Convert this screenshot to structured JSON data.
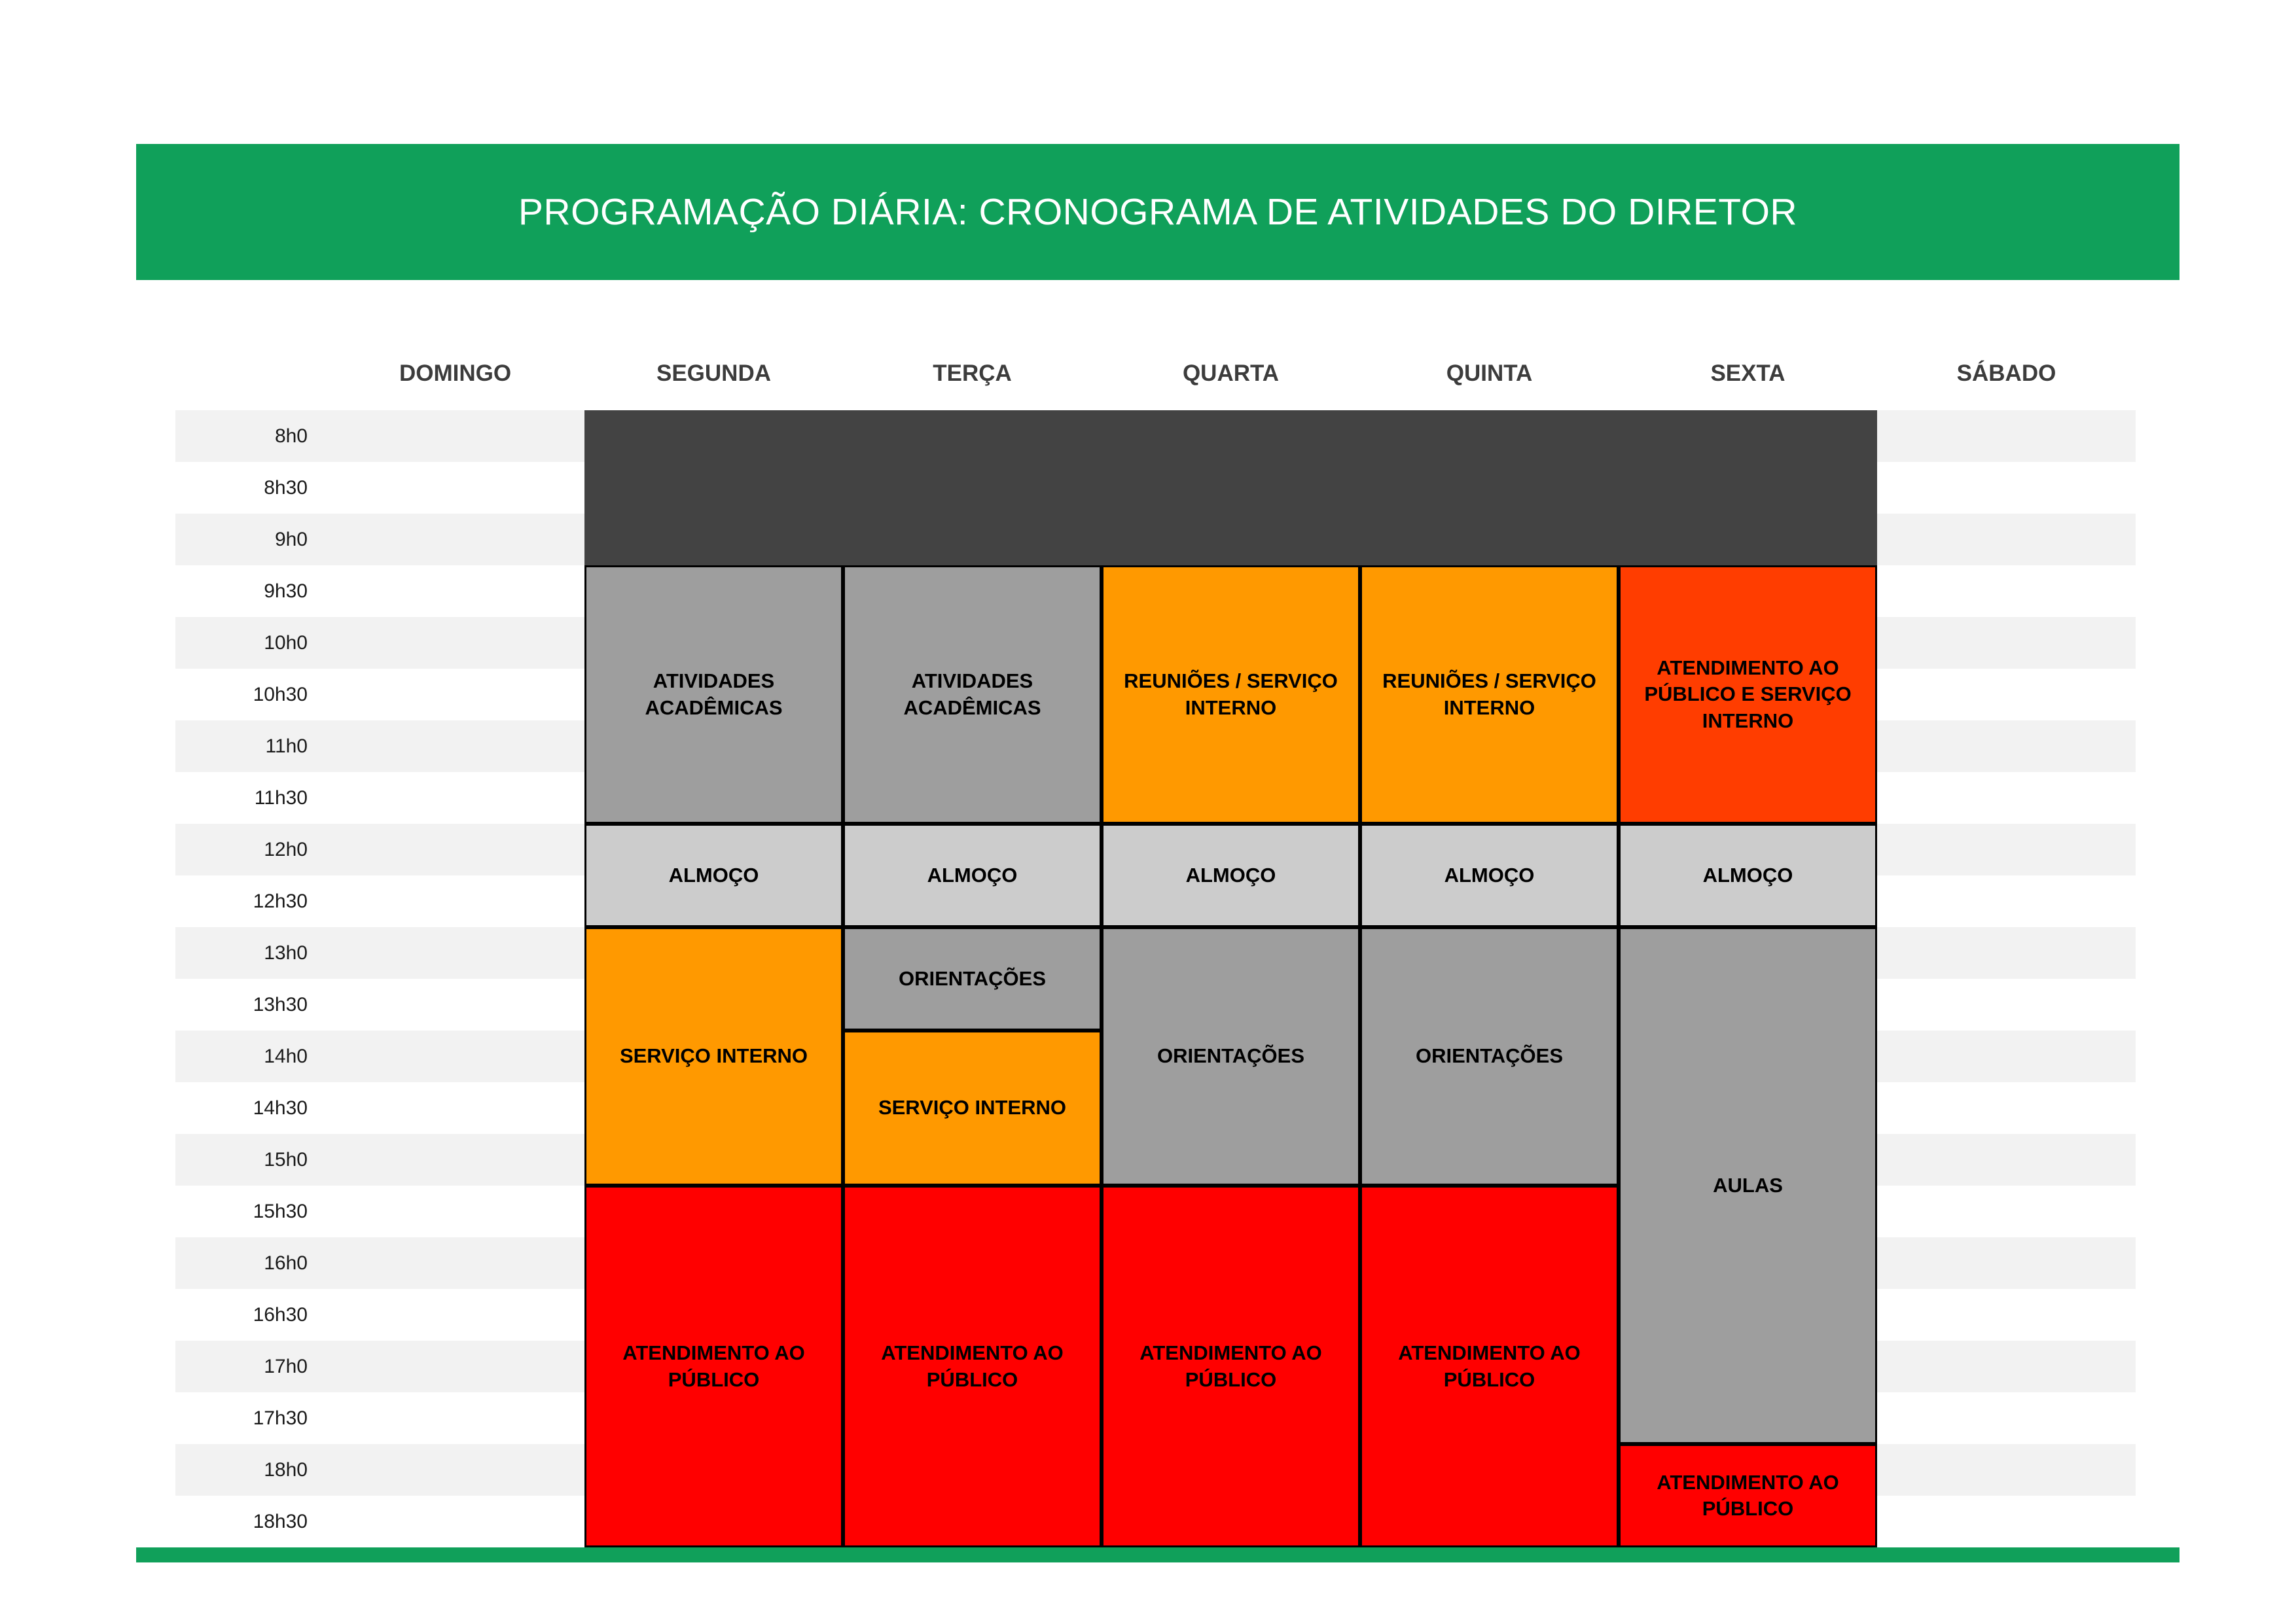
{
  "banner": {
    "title": "PROGRAMAÇÃO DIÁRIA: CRONOGRAMA DE ATIVIDADES DO DIRETOR"
  },
  "colors": {
    "banner_green": "#10a05a",
    "block_dark": "#434343",
    "block_gray": "#9e9e9e",
    "block_lightgray": "#cccccc",
    "block_orange": "#ff9900",
    "block_deep_orange": "#ff3d00",
    "block_red": "#ff0000",
    "row_stripe": "#f2f2f2",
    "header_text": "#3c3c3c"
  },
  "chart_data": {
    "type": "table",
    "title": "PROGRAMAÇÃO DIÁRIA: CRONOGRAMA DE ATIVIDADES DO DIRETOR",
    "columns": [
      "DOMINGO",
      "SEGUNDA",
      "TERÇA",
      "QUARTA",
      "QUINTA",
      "SEXTA",
      "SÁBADO"
    ],
    "rows": [
      "8h0",
      "8h30",
      "9h0",
      "9h30",
      "10h0",
      "10h30",
      "11h0",
      "11h30",
      "12h0",
      "12h30",
      "13h0",
      "13h30",
      "14h0",
      "14h30",
      "15h0",
      "15h30",
      "16h0",
      "16h30",
      "17h0",
      "17h30",
      "18h0",
      "18h30"
    ],
    "blocks": [
      {
        "label": "",
        "day": "SEGUNDA–SEXTA",
        "start": "8h0",
        "end": "9h30",
        "col": 1,
        "colspan": 5,
        "row": 0,
        "rowspan": 3,
        "color": "#434343"
      },
      {
        "label": "ATIVIDADES ACADÊMICAS",
        "day": "SEGUNDA",
        "start": "9h30",
        "end": "12h0",
        "col": 1,
        "colspan": 1,
        "row": 3,
        "rowspan": 5,
        "color": "#9e9e9e"
      },
      {
        "label": "ATIVIDADES ACADÊMICAS",
        "day": "TERÇA",
        "start": "9h30",
        "end": "12h0",
        "col": 2,
        "colspan": 1,
        "row": 3,
        "rowspan": 5,
        "color": "#9e9e9e"
      },
      {
        "label": "REUNIÕES / SERVIÇO INTERNO",
        "day": "QUARTA",
        "start": "9h30",
        "end": "12h0",
        "col": 3,
        "colspan": 1,
        "row": 3,
        "rowspan": 5,
        "color": "#ff9900"
      },
      {
        "label": "REUNIÕES / SERVIÇO INTERNO",
        "day": "QUINTA",
        "start": "9h30",
        "end": "12h0",
        "col": 4,
        "colspan": 1,
        "row": 3,
        "rowspan": 5,
        "color": "#ff9900"
      },
      {
        "label": "ATENDIMENTO AO PÚBLICO E SERVIÇO INTERNO",
        "day": "SEXTA",
        "start": "9h30",
        "end": "12h0",
        "col": 5,
        "colspan": 1,
        "row": 3,
        "rowspan": 5,
        "color": "#ff3d00"
      },
      {
        "label": "ALMOÇO",
        "day": "SEGUNDA",
        "start": "12h0",
        "end": "13h0",
        "col": 1,
        "colspan": 1,
        "row": 8,
        "rowspan": 2,
        "color": "#cccccc"
      },
      {
        "label": "ALMOÇO",
        "day": "TERÇA",
        "start": "12h0",
        "end": "13h0",
        "col": 2,
        "colspan": 1,
        "row": 8,
        "rowspan": 2,
        "color": "#cccccc"
      },
      {
        "label": "ALMOÇO",
        "day": "QUARTA",
        "start": "12h0",
        "end": "13h0",
        "col": 3,
        "colspan": 1,
        "row": 8,
        "rowspan": 2,
        "color": "#cccccc"
      },
      {
        "label": "ALMOÇO",
        "day": "QUINTA",
        "start": "12h0",
        "end": "13h0",
        "col": 4,
        "colspan": 1,
        "row": 8,
        "rowspan": 2,
        "color": "#cccccc"
      },
      {
        "label": "ALMOÇO",
        "day": "SEXTA",
        "start": "12h0",
        "end": "13h0",
        "col": 5,
        "colspan": 1,
        "row": 8,
        "rowspan": 2,
        "color": "#cccccc"
      },
      {
        "label": "SERVIÇO INTERNO",
        "day": "SEGUNDA",
        "start": "13h0",
        "end": "15h30",
        "col": 1,
        "colspan": 1,
        "row": 10,
        "rowspan": 5,
        "color": "#ff9900"
      },
      {
        "label": "ORIENTAÇÕES",
        "day": "TERÇA",
        "start": "13h0",
        "end": "14h0",
        "col": 2,
        "colspan": 1,
        "row": 10,
        "rowspan": 2,
        "color": "#9e9e9e"
      },
      {
        "label": "SERVIÇO INTERNO",
        "day": "TERÇA",
        "start": "14h0",
        "end": "15h30",
        "col": 2,
        "colspan": 1,
        "row": 12,
        "rowspan": 3,
        "color": "#ff9900"
      },
      {
        "label": "ORIENTAÇÕES",
        "day": "QUARTA",
        "start": "13h0",
        "end": "15h30",
        "col": 3,
        "colspan": 1,
        "row": 10,
        "rowspan": 5,
        "color": "#9e9e9e"
      },
      {
        "label": "ORIENTAÇÕES",
        "day": "QUINTA",
        "start": "13h0",
        "end": "15h30",
        "col": 4,
        "colspan": 1,
        "row": 10,
        "rowspan": 5,
        "color": "#9e9e9e"
      },
      {
        "label": "AULAS",
        "day": "SEXTA",
        "start": "13h0",
        "end": "18h0",
        "col": 5,
        "colspan": 1,
        "row": 10,
        "rowspan": 10,
        "color": "#9e9e9e"
      },
      {
        "label": "ATENDIMENTO AO PÚBLICO",
        "day": "SEGUNDA",
        "start": "15h30",
        "end": "19h0",
        "col": 1,
        "colspan": 1,
        "row": 15,
        "rowspan": 7,
        "color": "#ff0000"
      },
      {
        "label": "ATENDIMENTO AO PÚBLICO",
        "day": "TERÇA",
        "start": "15h30",
        "end": "19h0",
        "col": 2,
        "colspan": 1,
        "row": 15,
        "rowspan": 7,
        "color": "#ff0000"
      },
      {
        "label": "ATENDIMENTO AO PÚBLICO",
        "day": "QUARTA",
        "start": "15h30",
        "end": "19h0",
        "col": 3,
        "colspan": 1,
        "row": 15,
        "rowspan": 7,
        "color": "#ff0000"
      },
      {
        "label": "ATENDIMENTO AO PÚBLICO",
        "day": "QUINTA",
        "start": "15h30",
        "end": "19h0",
        "col": 4,
        "colspan": 1,
        "row": 15,
        "rowspan": 7,
        "color": "#ff0000"
      },
      {
        "label": "ATENDIMENTO AO PÚBLICO",
        "day": "SEXTA",
        "start": "18h0",
        "end": "19h0",
        "col": 5,
        "colspan": 1,
        "row": 20,
        "rowspan": 2,
        "color": "#ff0000"
      }
    ]
  }
}
